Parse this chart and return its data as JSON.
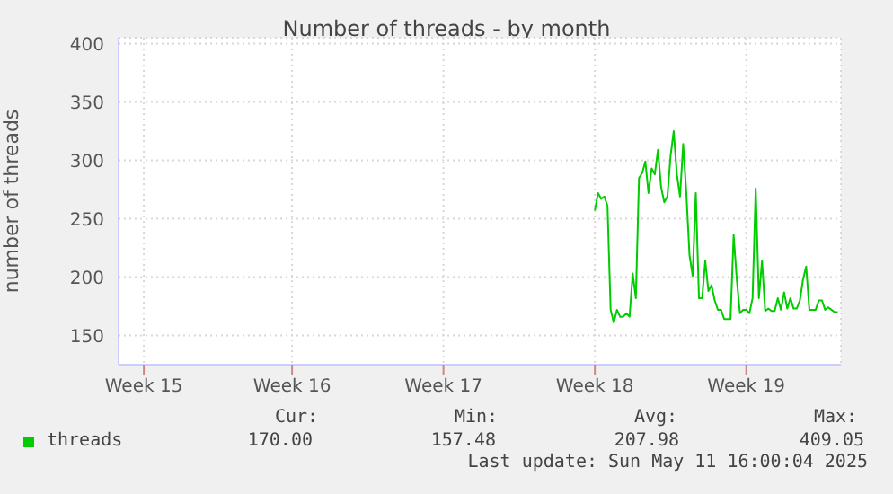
{
  "chart_data": {
    "type": "line",
    "title": "Number of threads - by month",
    "ylabel": "number of threads",
    "categories": [
      null,
      null,
      null,
      null,
      null,
      null,
      null,
      null,
      "Week 15",
      null,
      null,
      null,
      null,
      null,
      null,
      null,
      null,
      null,
      null,
      null,
      null,
      null,
      null,
      null,
      null,
      null,
      null,
      null,
      null,
      null,
      null,
      null,
      null,
      null,
      null,
      null,
      null,
      null,
      null,
      null,
      null,
      null,
      null,
      null,
      null,
      null,
      null,
      null,
      null,
      null,
      null,
      null,
      null,
      null,
      null,
      "Week 16",
      null,
      null,
      null,
      null,
      null,
      null,
      null,
      null,
      null,
      null,
      null,
      null,
      null,
      null,
      null,
      null,
      null,
      null,
      null,
      null,
      null,
      null,
      null,
      null,
      null,
      null,
      null,
      null,
      null,
      null,
      null,
      null,
      null,
      null,
      null,
      null,
      null,
      null,
      null,
      null,
      null,
      null,
      null,
      null,
      null,
      null,
      null,
      "Week 17",
      null,
      null,
      null,
      null,
      null,
      null,
      null,
      null,
      null,
      null,
      null,
      null,
      null,
      null,
      null,
      null,
      null,
      null,
      null,
      null,
      null,
      null,
      null,
      null,
      null,
      null,
      null,
      null,
      null,
      null,
      null,
      null,
      null,
      null,
      null,
      null,
      null,
      null,
      null,
      null,
      null,
      null,
      null,
      null,
      null,
      null,
      null,
      "Week 18",
      null,
      null,
      null,
      null,
      null,
      null,
      null,
      null,
      null,
      null,
      null,
      null,
      null,
      null,
      null,
      null,
      null,
      null,
      null,
      null,
      null,
      null,
      null,
      null,
      null,
      null,
      null,
      null,
      null,
      null,
      null,
      null,
      null,
      null,
      null,
      null,
      null,
      null,
      null,
      null,
      null,
      null,
      null,
      null,
      null,
      null,
      null,
      "Week 19",
      null,
      null,
      null,
      null,
      null,
      null,
      null,
      null,
      null,
      null,
      null,
      null,
      null,
      null,
      null,
      null,
      null,
      null,
      null,
      null,
      null,
      null,
      null,
      null,
      null,
      null,
      null,
      null,
      null,
      null
    ],
    "ylim": [
      125,
      405
    ],
    "yticks": [
      150,
      200,
      250,
      300,
      350,
      400
    ],
    "grid": true,
    "legend": "bottom left",
    "marker": "none",
    "line_style": "solid",
    "annotations": [
      "Cur:",
      "Min:",
      "Avg:",
      "Max:",
      "170.00",
      "157.48",
      "207.98",
      "409.05",
      "Last update: Sun May 11 16:00:04 2025"
    ],
    "series": [
      {
        "name": "threads",
        "color": "#00cc00",
        "values": [
          null,
          null,
          null,
          null,
          null,
          null,
          null,
          null,
          null,
          null,
          null,
          null,
          null,
          null,
          null,
          null,
          null,
          null,
          null,
          null,
          null,
          null,
          null,
          null,
          null,
          null,
          null,
          null,
          null,
          null,
          null,
          null,
          null,
          null,
          null,
          null,
          null,
          null,
          null,
          null,
          null,
          null,
          null,
          null,
          null,
          null,
          null,
          null,
          null,
          null,
          null,
          null,
          null,
          null,
          null,
          null,
          null,
          null,
          null,
          null,
          null,
          null,
          null,
          null,
          null,
          null,
          null,
          null,
          null,
          null,
          null,
          null,
          null,
          null,
          null,
          null,
          null,
          null,
          null,
          null,
          null,
          null,
          null,
          null,
          null,
          null,
          null,
          null,
          null,
          null,
          null,
          null,
          null,
          null,
          null,
          null,
          null,
          null,
          null,
          null,
          null,
          null,
          null,
          null,
          null,
          null,
          null,
          null,
          null,
          null,
          null,
          null,
          null,
          null,
          null,
          null,
          null,
          null,
          null,
          null,
          null,
          null,
          null,
          null,
          null,
          null,
          null,
          null,
          null,
          null,
          null,
          null,
          null,
          null,
          null,
          null,
          null,
          null,
          null,
          null,
          null,
          null,
          null,
          null,
          null,
          null,
          null,
          null,
          null,
          null,
          null,
          257,
          272,
          267,
          269,
          261,
          172,
          161,
          172,
          166,
          166,
          169,
          166,
          203,
          182,
          285,
          289,
          299,
          272,
          293,
          288,
          309,
          277,
          264,
          269,
          304,
          325,
          288,
          269,
          314,
          272,
          219,
          201,
          272,
          182,
          182,
          214,
          188,
          193,
          180,
          172,
          172,
          164,
          164,
          164,
          236,
          198,
          169,
          172,
          172,
          169,
          182,
          276,
          182,
          214,
          171,
          173,
          171,
          171,
          182,
          172,
          187,
          173,
          182,
          173,
          173,
          180,
          198,
          209,
          172,
          172,
          172,
          180,
          180,
          172,
          174,
          172,
          170,
          170,
          null
        ]
      }
    ]
  }
}
